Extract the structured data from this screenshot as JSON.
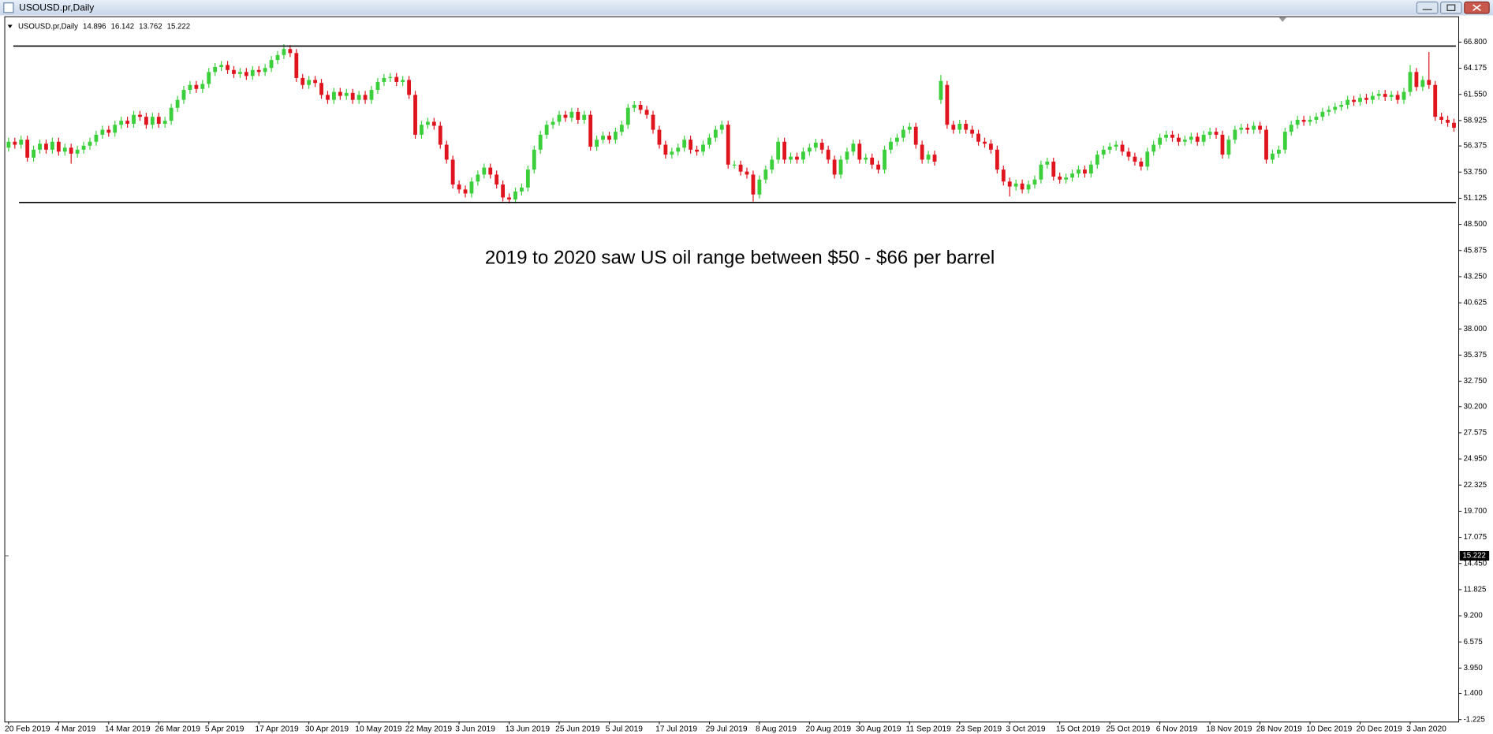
{
  "window": {
    "title": "USOUSD.pr,Daily"
  },
  "chart_data": {
    "type": "candlestick",
    "symbol": "USOUSD.pr,Daily",
    "header_values": [
      14.896,
      16.142,
      13.762,
      15.222
    ],
    "annotation": "2019 to 2020 saw US oil range between $50 - $66 per barrel",
    "last_price": 15.222,
    "up_color": "#3ccf3c",
    "down_color": "#e0141e",
    "hlines": [
      66.4,
      50.7
    ],
    "ylim": [
      -1.42,
      69.3
    ],
    "yticks": [
      {
        "value": 66.8,
        "label": "66.800"
      },
      {
        "value": 64.175,
        "label": "64.175"
      },
      {
        "value": 61.55,
        "label": "61.550"
      },
      {
        "value": 58.925,
        "label": "58.925"
      },
      {
        "value": 56.375,
        "label": "56.375"
      },
      {
        "value": 53.75,
        "label": "53.750"
      },
      {
        "value": 51.125,
        "label": "51.125"
      },
      {
        "value": 48.5,
        "label": "48.500"
      },
      {
        "value": 45.875,
        "label": "45.875"
      },
      {
        "value": 43.25,
        "label": "43.250"
      },
      {
        "value": 40.625,
        "label": "40.625"
      },
      {
        "value": 38,
        "label": "38.000"
      },
      {
        "value": 35.375,
        "label": "35.375"
      },
      {
        "value": 32.75,
        "label": "32.750"
      },
      {
        "value": 30.2,
        "label": "30.200"
      },
      {
        "value": 27.575,
        "label": "27.575"
      },
      {
        "value": 24.95,
        "label": "24.950"
      },
      {
        "value": 22.325,
        "label": "22.325"
      },
      {
        "value": 19.7,
        "label": "19.700"
      },
      {
        "value": 17.075,
        "label": "17.075"
      },
      {
        "value": 14.45,
        "label": "14.450"
      },
      {
        "value": 11.825,
        "label": "11.825"
      },
      {
        "value": 9.2,
        "label": "9.200"
      },
      {
        "value": 6.575,
        "label": "6.575"
      },
      {
        "value": 3.95,
        "label": "3.950"
      },
      {
        "value": 1.4,
        "label": "1.400"
      },
      {
        "value": -1.225,
        "label": "-1.225"
      }
    ],
    "categories": [
      "20 Feb 2019",
      null,
      null,
      null,
      null,
      null,
      null,
      null,
      "4 Mar 2019",
      null,
      null,
      null,
      null,
      null,
      null,
      null,
      "14 Mar 2019",
      null,
      null,
      null,
      null,
      null,
      null,
      null,
      "26 Mar 2019",
      null,
      null,
      null,
      null,
      null,
      null,
      null,
      "5 Apr 2019",
      null,
      null,
      null,
      null,
      null,
      null,
      null,
      "17 Apr 2019",
      null,
      null,
      null,
      null,
      null,
      null,
      null,
      "30 Apr 2019",
      null,
      null,
      null,
      null,
      null,
      null,
      null,
      "10 May 2019",
      null,
      null,
      null,
      null,
      null,
      null,
      null,
      "22 May 2019",
      null,
      null,
      null,
      null,
      null,
      null,
      null,
      "3 Jun 2019",
      null,
      null,
      null,
      null,
      null,
      null,
      null,
      "13 Jun 2019",
      null,
      null,
      null,
      null,
      null,
      null,
      null,
      "25 Jun 2019",
      null,
      null,
      null,
      null,
      null,
      null,
      null,
      "5 Jul 2019",
      null,
      null,
      null,
      null,
      null,
      null,
      null,
      "17 Jul 2019",
      null,
      null,
      null,
      null,
      null,
      null,
      null,
      "29 Jul 2019",
      null,
      null,
      null,
      null,
      null,
      null,
      null,
      "8 Aug 2019",
      null,
      null,
      null,
      null,
      null,
      null,
      null,
      "20 Aug 2019",
      null,
      null,
      null,
      null,
      null,
      null,
      null,
      "30 Aug 2019",
      null,
      null,
      null,
      null,
      null,
      null,
      null,
      "11 Sep 2019",
      null,
      null,
      null,
      null,
      null,
      null,
      null,
      "23 Sep 2019",
      null,
      null,
      null,
      null,
      null,
      null,
      null,
      "3 Oct 2019",
      null,
      null,
      null,
      null,
      null,
      null,
      null,
      "15 Oct 2019",
      null,
      null,
      null,
      null,
      null,
      null,
      null,
      "25 Oct 2019",
      null,
      null,
      null,
      null,
      null,
      null,
      null,
      "6 Nov 2019",
      null,
      null,
      null,
      null,
      null,
      null,
      null,
      "18 Nov 2019",
      null,
      null,
      null,
      null,
      null,
      null,
      null,
      "28 Nov 2019",
      null,
      null,
      null,
      null,
      null,
      null,
      null,
      "10 Dec 2019",
      null,
      null,
      null,
      null,
      null,
      null,
      null,
      "20 Dec 2019",
      null,
      null,
      null,
      null,
      null,
      null,
      null,
      "3 Jan 2020",
      null,
      null,
      null,
      null,
      null,
      null,
      null
    ],
    "open": [
      56.2,
      56.8,
      56.5,
      57.0,
      55.2,
      56.0,
      56.6,
      56.0,
      56.8,
      55.8,
      56.2,
      55.6,
      56.0,
      56.4,
      56.8,
      57.5,
      58.0,
      57.7,
      58.5,
      58.9,
      58.6,
      59.5,
      59.3,
      58.5,
      59.3,
      58.6,
      58.9,
      60.2,
      61.0,
      62.0,
      62.5,
      62.1,
      62.6,
      63.8,
      64.3,
      64.5,
      64.0,
      63.6,
      63.8,
      63.4,
      64.0,
      63.8,
      64.2,
      65.0,
      65.5,
      66.1,
      65.7,
      63.2,
      62.5,
      63.0,
      62.7,
      61.5,
      61.0,
      61.8,
      61.4,
      61.7,
      61.0,
      61.5,
      61.0,
      62.0,
      62.8,
      63.2,
      63.3,
      62.8,
      63.0,
      61.5,
      57.5,
      58.5,
      58.8,
      58.4,
      56.5,
      55.0,
      52.5,
      52.0,
      51.6,
      52.8,
      53.5,
      54.2,
      53.5,
      52.5,
      51.2,
      51.0,
      51.8,
      52.2,
      54.0,
      56.0,
      57.5,
      58.5,
      58.8,
      59.5,
      59.2,
      59.8,
      59.0,
      59.5,
      56.3,
      57.0,
      57.4,
      57.0,
      57.8,
      58.5,
      60.2,
      60.5,
      60.0,
      59.5,
      58.0,
      56.5,
      55.5,
      55.8,
      56.2,
      57.0,
      56.0,
      55.8,
      56.5,
      57.2,
      58.0,
      58.5,
      54.5,
      54.5,
      53.8,
      53.5,
      51.5,
      53.0,
      54.0,
      55.0,
      56.8,
      55.0,
      55.3,
      55.0,
      55.8,
      56.2,
      56.7,
      56.0,
      55.0,
      53.5,
      55.0,
      55.8,
      56.6,
      55.0,
      55.2,
      54.5,
      54.0,
      56.0,
      56.8,
      57.2,
      58.0,
      58.3,
      56.5,
      55.0,
      55.5,
      61.0,
      62.5,
      58.5,
      58.0,
      58.6,
      58.0,
      57.6,
      56.8,
      56.6,
      56.0,
      54.0,
      52.8,
      52.3,
      52.6,
      52.0,
      52.5,
      53.0,
      54.5,
      54.8,
      53.3,
      53.0,
      53.2,
      53.6,
      54.0,
      53.6,
      54.5,
      55.5,
      56.0,
      56.3,
      56.5,
      55.8,
      55.3,
      54.8,
      54.3,
      55.8,
      56.5,
      57.2,
      57.5,
      57.2,
      56.8,
      57.0,
      57.3,
      56.8,
      57.5,
      57.8,
      57.5,
      55.5,
      57.0,
      58.0,
      58.2,
      58.0,
      58.4,
      58.0,
      55.0,
      55.6,
      56.0,
      57.8,
      58.5,
      59.0,
      58.8,
      59.0,
      59.3,
      59.8,
      60.0,
      60.3,
      60.5,
      61.0,
      60.8,
      61.2,
      61.0,
      61.4,
      61.6,
      61.3,
      61.5,
      61.0,
      61.8,
      63.8,
      62.3,
      63.0,
      62.5,
      59.3,
      59.0,
      58.7
    ],
    "high": [
      57.2,
      57.2,
      57.4,
      57.4,
      56.4,
      57.0,
      57.0,
      57.2,
      57.2,
      56.6,
      56.6,
      56.4,
      56.8,
      57.2,
      57.9,
      58.4,
      58.4,
      58.9,
      59.3,
      59.3,
      59.9,
      59.9,
      59.7,
      59.7,
      59.7,
      59.3,
      60.6,
      61.4,
      62.4,
      62.9,
      62.9,
      63.0,
      64.2,
      64.7,
      64.9,
      64.9,
      64.4,
      64.2,
      64.2,
      64.4,
      64.4,
      64.6,
      65.4,
      65.9,
      66.6,
      66.5,
      66.1,
      63.6,
      63.4,
      63.4,
      63.1,
      61.9,
      62.2,
      62.2,
      62.1,
      62.1,
      61.9,
      61.9,
      62.4,
      63.2,
      63.6,
      63.7,
      63.7,
      63.4,
      63.4,
      61.9,
      58.9,
      59.2,
      59.2,
      58.8,
      56.9,
      55.4,
      52.9,
      52.4,
      53.2,
      53.9,
      54.6,
      54.6,
      53.9,
      52.9,
      51.6,
      52.2,
      52.6,
      54.4,
      56.4,
      57.9,
      58.9,
      59.2,
      59.9,
      59.9,
      60.2,
      60.2,
      59.9,
      59.9,
      57.4,
      57.8,
      57.8,
      58.2,
      58.9,
      60.6,
      60.9,
      60.9,
      60.4,
      59.9,
      58.4,
      56.9,
      56.2,
      56.6,
      57.4,
      57.4,
      56.4,
      56.9,
      57.6,
      58.4,
      58.9,
      58.9,
      54.9,
      54.9,
      54.2,
      53.9,
      53.4,
      54.4,
      55.4,
      57.2,
      57.2,
      55.7,
      55.7,
      56.2,
      56.6,
      57.1,
      57.1,
      56.4,
      55.4,
      55.4,
      56.2,
      57.0,
      57.0,
      55.6,
      55.6,
      54.9,
      56.4,
      57.2,
      57.6,
      58.4,
      58.7,
      58.7,
      56.9,
      55.9,
      55.9,
      63.5,
      62.9,
      58.9,
      59.0,
      59.0,
      58.4,
      58.0,
      57.2,
      57.0,
      56.4,
      54.4,
      53.2,
      53.0,
      53.0,
      52.9,
      53.4,
      54.9,
      55.2,
      55.2,
      53.7,
      53.6,
      54.0,
      54.4,
      54.4,
      54.9,
      55.9,
      56.4,
      56.7,
      56.9,
      56.9,
      56.2,
      55.7,
      55.2,
      56.2,
      56.9,
      57.6,
      57.9,
      57.9,
      57.6,
      57.4,
      57.7,
      57.7,
      57.9,
      58.2,
      58.2,
      57.9,
      57.4,
      58.4,
      58.6,
      58.6,
      58.8,
      58.8,
      58.4,
      56.0,
      56.4,
      58.2,
      58.9,
      59.4,
      59.4,
      59.4,
      59.7,
      60.2,
      60.4,
      60.7,
      60.9,
      61.4,
      61.4,
      61.6,
      61.6,
      61.8,
      62.0,
      62.0,
      61.9,
      61.9,
      62.2,
      64.5,
      64.2,
      63.4,
      65.8,
      62.9,
      59.7,
      59.4,
      59.1
    ],
    "low": [
      55.8,
      56.1,
      56.1,
      54.8,
      54.8,
      55.6,
      55.6,
      55.6,
      55.4,
      55.4,
      54.6,
      55.2,
      55.6,
      56.0,
      56.4,
      57.1,
      57.3,
      57.3,
      58.1,
      58.2,
      58.2,
      58.9,
      58.1,
      58.1,
      58.2,
      58.2,
      58.5,
      59.8,
      60.6,
      61.6,
      61.7,
      61.7,
      62.2,
      63.4,
      63.9,
      63.6,
      63.2,
      63.2,
      63.0,
      63.0,
      63.4,
      63.4,
      63.8,
      64.6,
      65.1,
      65.3,
      62.8,
      62.1,
      62.1,
      62.3,
      61.1,
      60.6,
      60.6,
      61.0,
      61.0,
      60.6,
      60.6,
      60.6,
      60.6,
      61.6,
      62.4,
      62.8,
      62.4,
      62.4,
      61.1,
      57.1,
      57.1,
      58.1,
      58.0,
      56.1,
      54.6,
      52.1,
      51.6,
      51.2,
      51.2,
      52.4,
      53.1,
      53.1,
      52.1,
      50.8,
      50.6,
      50.6,
      51.4,
      51.8,
      53.6,
      55.6,
      57.1,
      58.1,
      58.4,
      58.8,
      58.8,
      58.6,
      58.6,
      55.9,
      55.9,
      56.6,
      56.6,
      56.6,
      57.4,
      58.1,
      59.8,
      59.6,
      59.1,
      57.6,
      56.1,
      55.1,
      55.1,
      55.4,
      55.8,
      55.6,
      55.4,
      55.4,
      56.1,
      56.8,
      57.6,
      54.1,
      54.1,
      53.4,
      53.1,
      50.8,
      51.1,
      52.6,
      53.6,
      54.6,
      54.6,
      54.6,
      54.6,
      54.6,
      55.4,
      55.8,
      55.6,
      54.6,
      53.1,
      53.1,
      54.6,
      55.4,
      54.6,
      54.6,
      54.1,
      53.6,
      53.6,
      55.6,
      56.4,
      56.8,
      57.6,
      56.1,
      54.6,
      54.6,
      54.4,
      60.6,
      58.1,
      57.6,
      57.6,
      57.6,
      57.2,
      56.4,
      56.2,
      55.6,
      53.6,
      52.4,
      51.3,
      51.9,
      51.6,
      51.6,
      52.1,
      52.6,
      54.1,
      52.9,
      52.6,
      52.6,
      52.8,
      53.2,
      53.2,
      53.2,
      54.1,
      55.1,
      55.6,
      55.9,
      55.4,
      54.9,
      54.4,
      53.9,
      53.9,
      55.4,
      56.1,
      56.8,
      56.8,
      56.4,
      56.4,
      56.6,
      56.4,
      56.4,
      57.1,
      57.1,
      55.1,
      55.1,
      56.6,
      57.6,
      57.6,
      57.6,
      57.6,
      54.6,
      54.6,
      55.2,
      55.6,
      57.4,
      58.1,
      58.4,
      58.4,
      58.6,
      58.9,
      59.4,
      59.6,
      59.9,
      60.1,
      60.4,
      60.4,
      60.6,
      60.6,
      61.0,
      60.9,
      60.9,
      60.6,
      60.6,
      61.4,
      61.9,
      61.9,
      62.1,
      58.9,
      58.6,
      58.3,
      57.8
    ],
    "close": [
      56.8,
      56.5,
      57.0,
      55.2,
      56.0,
      56.6,
      56.0,
      56.8,
      55.8,
      56.2,
      55.6,
      56.0,
      56.4,
      56.8,
      57.5,
      58.0,
      57.7,
      58.5,
      58.9,
      58.6,
      59.5,
      59.3,
      58.5,
      59.3,
      58.6,
      58.9,
      60.2,
      61.0,
      62.0,
      62.5,
      62.1,
      62.6,
      63.8,
      64.3,
      64.5,
      64.0,
      63.6,
      63.8,
      63.4,
      64.0,
      63.8,
      64.2,
      65.0,
      65.5,
      66.1,
      65.7,
      63.2,
      62.5,
      63.0,
      62.7,
      61.5,
      61.0,
      61.8,
      61.4,
      61.7,
      61.0,
      61.5,
      61.0,
      62.0,
      62.8,
      63.2,
      63.3,
      62.8,
      63.0,
      61.5,
      57.5,
      58.5,
      58.8,
      58.4,
      56.5,
      55.0,
      52.5,
      52.0,
      51.6,
      52.8,
      53.5,
      54.2,
      53.5,
      52.5,
      51.2,
      51.0,
      51.8,
      52.2,
      54.0,
      56.0,
      57.5,
      58.5,
      58.8,
      59.5,
      59.2,
      59.8,
      59.0,
      59.5,
      56.3,
      57.0,
      57.4,
      57.0,
      57.8,
      58.5,
      60.2,
      60.5,
      60.0,
      59.5,
      58.0,
      56.5,
      55.5,
      55.8,
      56.2,
      57.0,
      56.0,
      55.8,
      56.5,
      57.2,
      58.0,
      58.5,
      54.5,
      54.5,
      53.8,
      53.5,
      51.5,
      53.0,
      54.0,
      55.0,
      56.8,
      55.0,
      55.3,
      55.0,
      55.8,
      56.2,
      56.7,
      56.0,
      55.0,
      53.5,
      55.0,
      55.8,
      56.6,
      55.0,
      55.2,
      54.5,
      54.0,
      56.0,
      56.8,
      57.2,
      58.0,
      58.3,
      56.5,
      55.0,
      55.5,
      54.8,
      62.9,
      58.5,
      58.0,
      58.6,
      58.0,
      57.6,
      56.8,
      56.6,
      56.0,
      54.0,
      52.8,
      52.3,
      52.6,
      52.0,
      52.5,
      53.0,
      54.5,
      54.8,
      53.3,
      53.0,
      53.2,
      53.6,
      54.0,
      53.6,
      54.5,
      55.5,
      56.0,
      56.3,
      56.5,
      55.8,
      55.3,
      54.8,
      54.3,
      55.8,
      56.5,
      57.2,
      57.5,
      57.2,
      56.8,
      57.0,
      57.3,
      56.8,
      57.5,
      57.8,
      57.5,
      55.5,
      57.0,
      58.0,
      58.2,
      58.0,
      58.4,
      58.0,
      55.0,
      55.6,
      56.0,
      57.8,
      58.5,
      59.0,
      58.8,
      59.0,
      59.3,
      59.8,
      60.0,
      60.3,
      60.5,
      61.0,
      60.8,
      61.2,
      61.0,
      61.4,
      61.6,
      61.3,
      61.5,
      61.0,
      61.8,
      63.8,
      62.3,
      63.0,
      62.5,
      59.3,
      59.0,
      58.7,
      58.2
    ]
  }
}
